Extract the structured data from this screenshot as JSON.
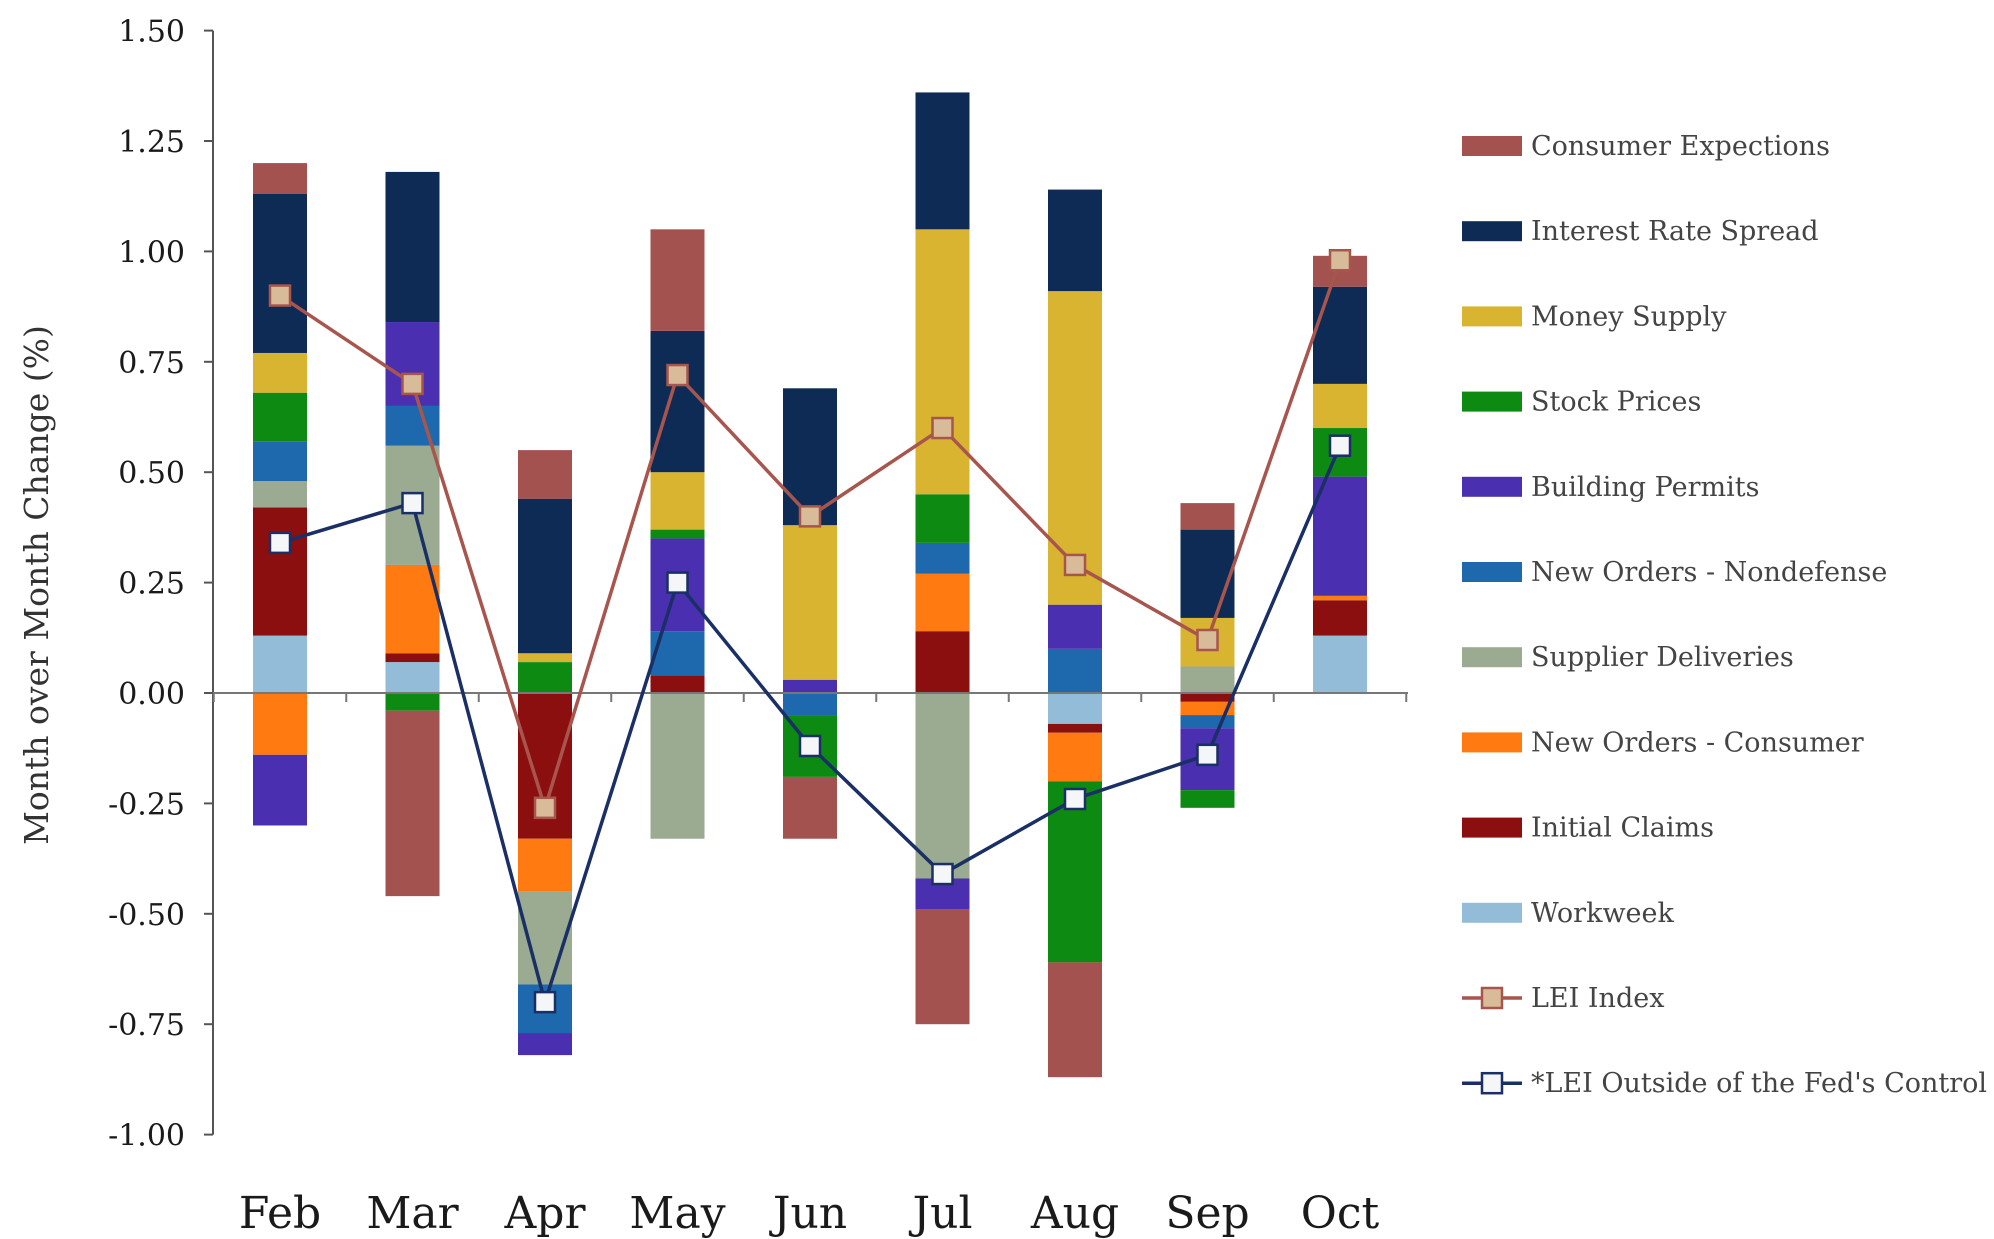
{
  "chart_data": {
    "type": "bar",
    "stacked": true,
    "ylabel": "Month over Month Change (%)",
    "xlabel": "",
    "ylim": [
      -1.0,
      1.5
    ],
    "ytick_labels": [
      "1.50",
      "1.25",
      "1.00",
      "0.75",
      "0.50",
      "0.25",
      "0.00",
      "-0.25",
      "-0.50",
      "-0.75",
      "-1.00"
    ],
    "yticks": [
      1.5,
      1.25,
      1.0,
      0.75,
      0.5,
      0.25,
      0.0,
      -0.25,
      -0.5,
      -0.75,
      -1.0
    ],
    "categories": [
      "Feb",
      "Mar",
      "Apr",
      "May",
      "Jun",
      "Jul",
      "Aug",
      "Sep",
      "Oct"
    ],
    "legend_position": "right",
    "series": [
      {
        "name": "Workweek",
        "color": "#93bcd9",
        "values": [
          0.13,
          0.07,
          0.0,
          0.0,
          0.0,
          0.0,
          -0.07,
          0.0,
          0.13
        ]
      },
      {
        "name": "Initial Claims",
        "color": "#8b0f0f",
        "values": [
          0.29,
          0.02,
          -0.33,
          0.04,
          0.0,
          0.14,
          -0.02,
          -0.02,
          0.08
        ]
      },
      {
        "name": "New Orders - Consumer",
        "color": "#ff7a10",
        "values": [
          -0.14,
          0.2,
          -0.12,
          0.0,
          0.0,
          0.13,
          -0.11,
          -0.03,
          0.01
        ]
      },
      {
        "name": "Supplier Deliveries",
        "color": "#9aab92",
        "values": [
          0.06,
          0.27,
          -0.21,
          -0.33,
          0.0,
          -0.42,
          0.0,
          0.06,
          0.0
        ]
      },
      {
        "name": "New Orders - Nondefense",
        "color": "#1e68ad",
        "values": [
          0.09,
          0.09,
          -0.11,
          0.1,
          -0.05,
          0.07,
          0.1,
          -0.03,
          0.0
        ]
      },
      {
        "name": "Building Permits",
        "color": "#4a2fb0",
        "values": [
          -0.16,
          0.19,
          -0.05,
          0.21,
          0.03,
          -0.07,
          0.1,
          -0.14,
          0.27
        ]
      },
      {
        "name": "Stock Prices",
        "color": "#0c8a12",
        "values": [
          0.11,
          -0.04,
          0.07,
          0.02,
          -0.14,
          0.11,
          -0.41,
          -0.04,
          0.11
        ]
      },
      {
        "name": "Money Supply",
        "color": "#d8b431",
        "values": [
          0.09,
          0.0,
          0.02,
          0.13,
          0.35,
          0.6,
          0.71,
          0.11,
          0.1
        ]
      },
      {
        "name": "Interest Rate Spread",
        "color": "#0d2b55",
        "values": [
          0.36,
          0.34,
          0.35,
          0.32,
          0.31,
          0.31,
          0.23,
          0.2,
          0.22
        ]
      },
      {
        "name": "Consumer Expections",
        "color": "#a4524f",
        "values": [
          0.07,
          -0.42,
          0.11,
          0.23,
          -0.14,
          -0.26,
          -0.26,
          0.06,
          0.07
        ]
      }
    ],
    "lines": [
      {
        "name": "LEI Index",
        "color": "#a8554d",
        "marker_fill": "#d8bc9a",
        "values": [
          0.9,
          0.7,
          -0.26,
          0.72,
          0.4,
          0.6,
          0.29,
          0.12,
          0.98
        ]
      },
      {
        "name": "*LEI Outside of the Fed's Control",
        "color": "#1a2f66",
        "marker_fill": "#f4f6f8",
        "values": [
          0.34,
          0.43,
          -0.7,
          0.25,
          -0.12,
          -0.41,
          -0.24,
          -0.14,
          0.56
        ]
      }
    ],
    "legend_order": [
      "Consumer Expections",
      "Interest Rate Spread",
      "Money Supply",
      "Stock Prices",
      "Building Permits",
      "New Orders - Nondefense",
      "Supplier Deliveries",
      "New Orders - Consumer",
      "Initial Claims",
      "Workweek",
      "LEI Index",
      "*LEI Outside of the Fed's Control"
    ]
  }
}
